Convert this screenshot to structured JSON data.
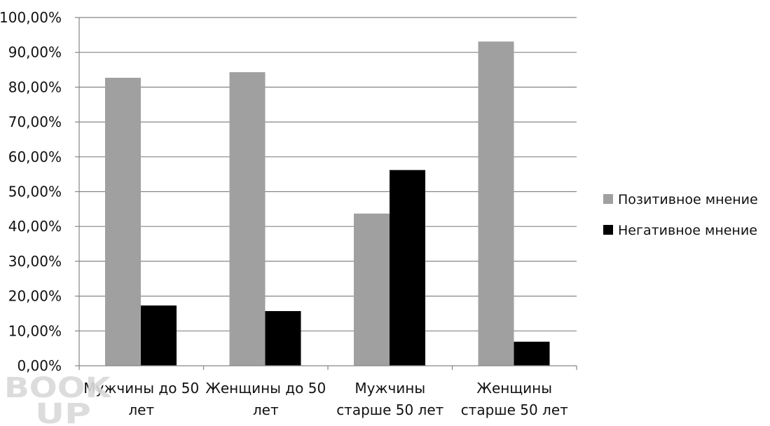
{
  "chart_data": {
    "type": "bar",
    "title": "",
    "xlabel": "",
    "ylabel": "",
    "categories": [
      [
        "Мужчины до 50",
        "лет"
      ],
      [
        "Женщины до 50",
        "лет"
      ],
      [
        "Мужчины",
        "старше 50 лет"
      ],
      [
        "Женщины",
        "старше 50 лет"
      ]
    ],
    "series": [
      {
        "name": "Позитивное мнение",
        "color": "#a0a0a0",
        "values": [
          82.7,
          84.3,
          43.7,
          93.1
        ]
      },
      {
        "name": "Негативное мнение",
        "color": "#000000",
        "values": [
          17.3,
          15.7,
          56.2,
          6.9
        ]
      }
    ],
    "ylim": [
      0,
      100
    ],
    "yticks": [
      "0,00%",
      "10,00%",
      "20,00%",
      "30,00%",
      "40,00%",
      "50,00%",
      "60,00%",
      "70,00%",
      "80,00%",
      "90,00%",
      "100,00%"
    ],
    "grid": true,
    "legend_position": "right"
  },
  "watermark": {
    "line1": "BOOK",
    "line2": "UP"
  }
}
